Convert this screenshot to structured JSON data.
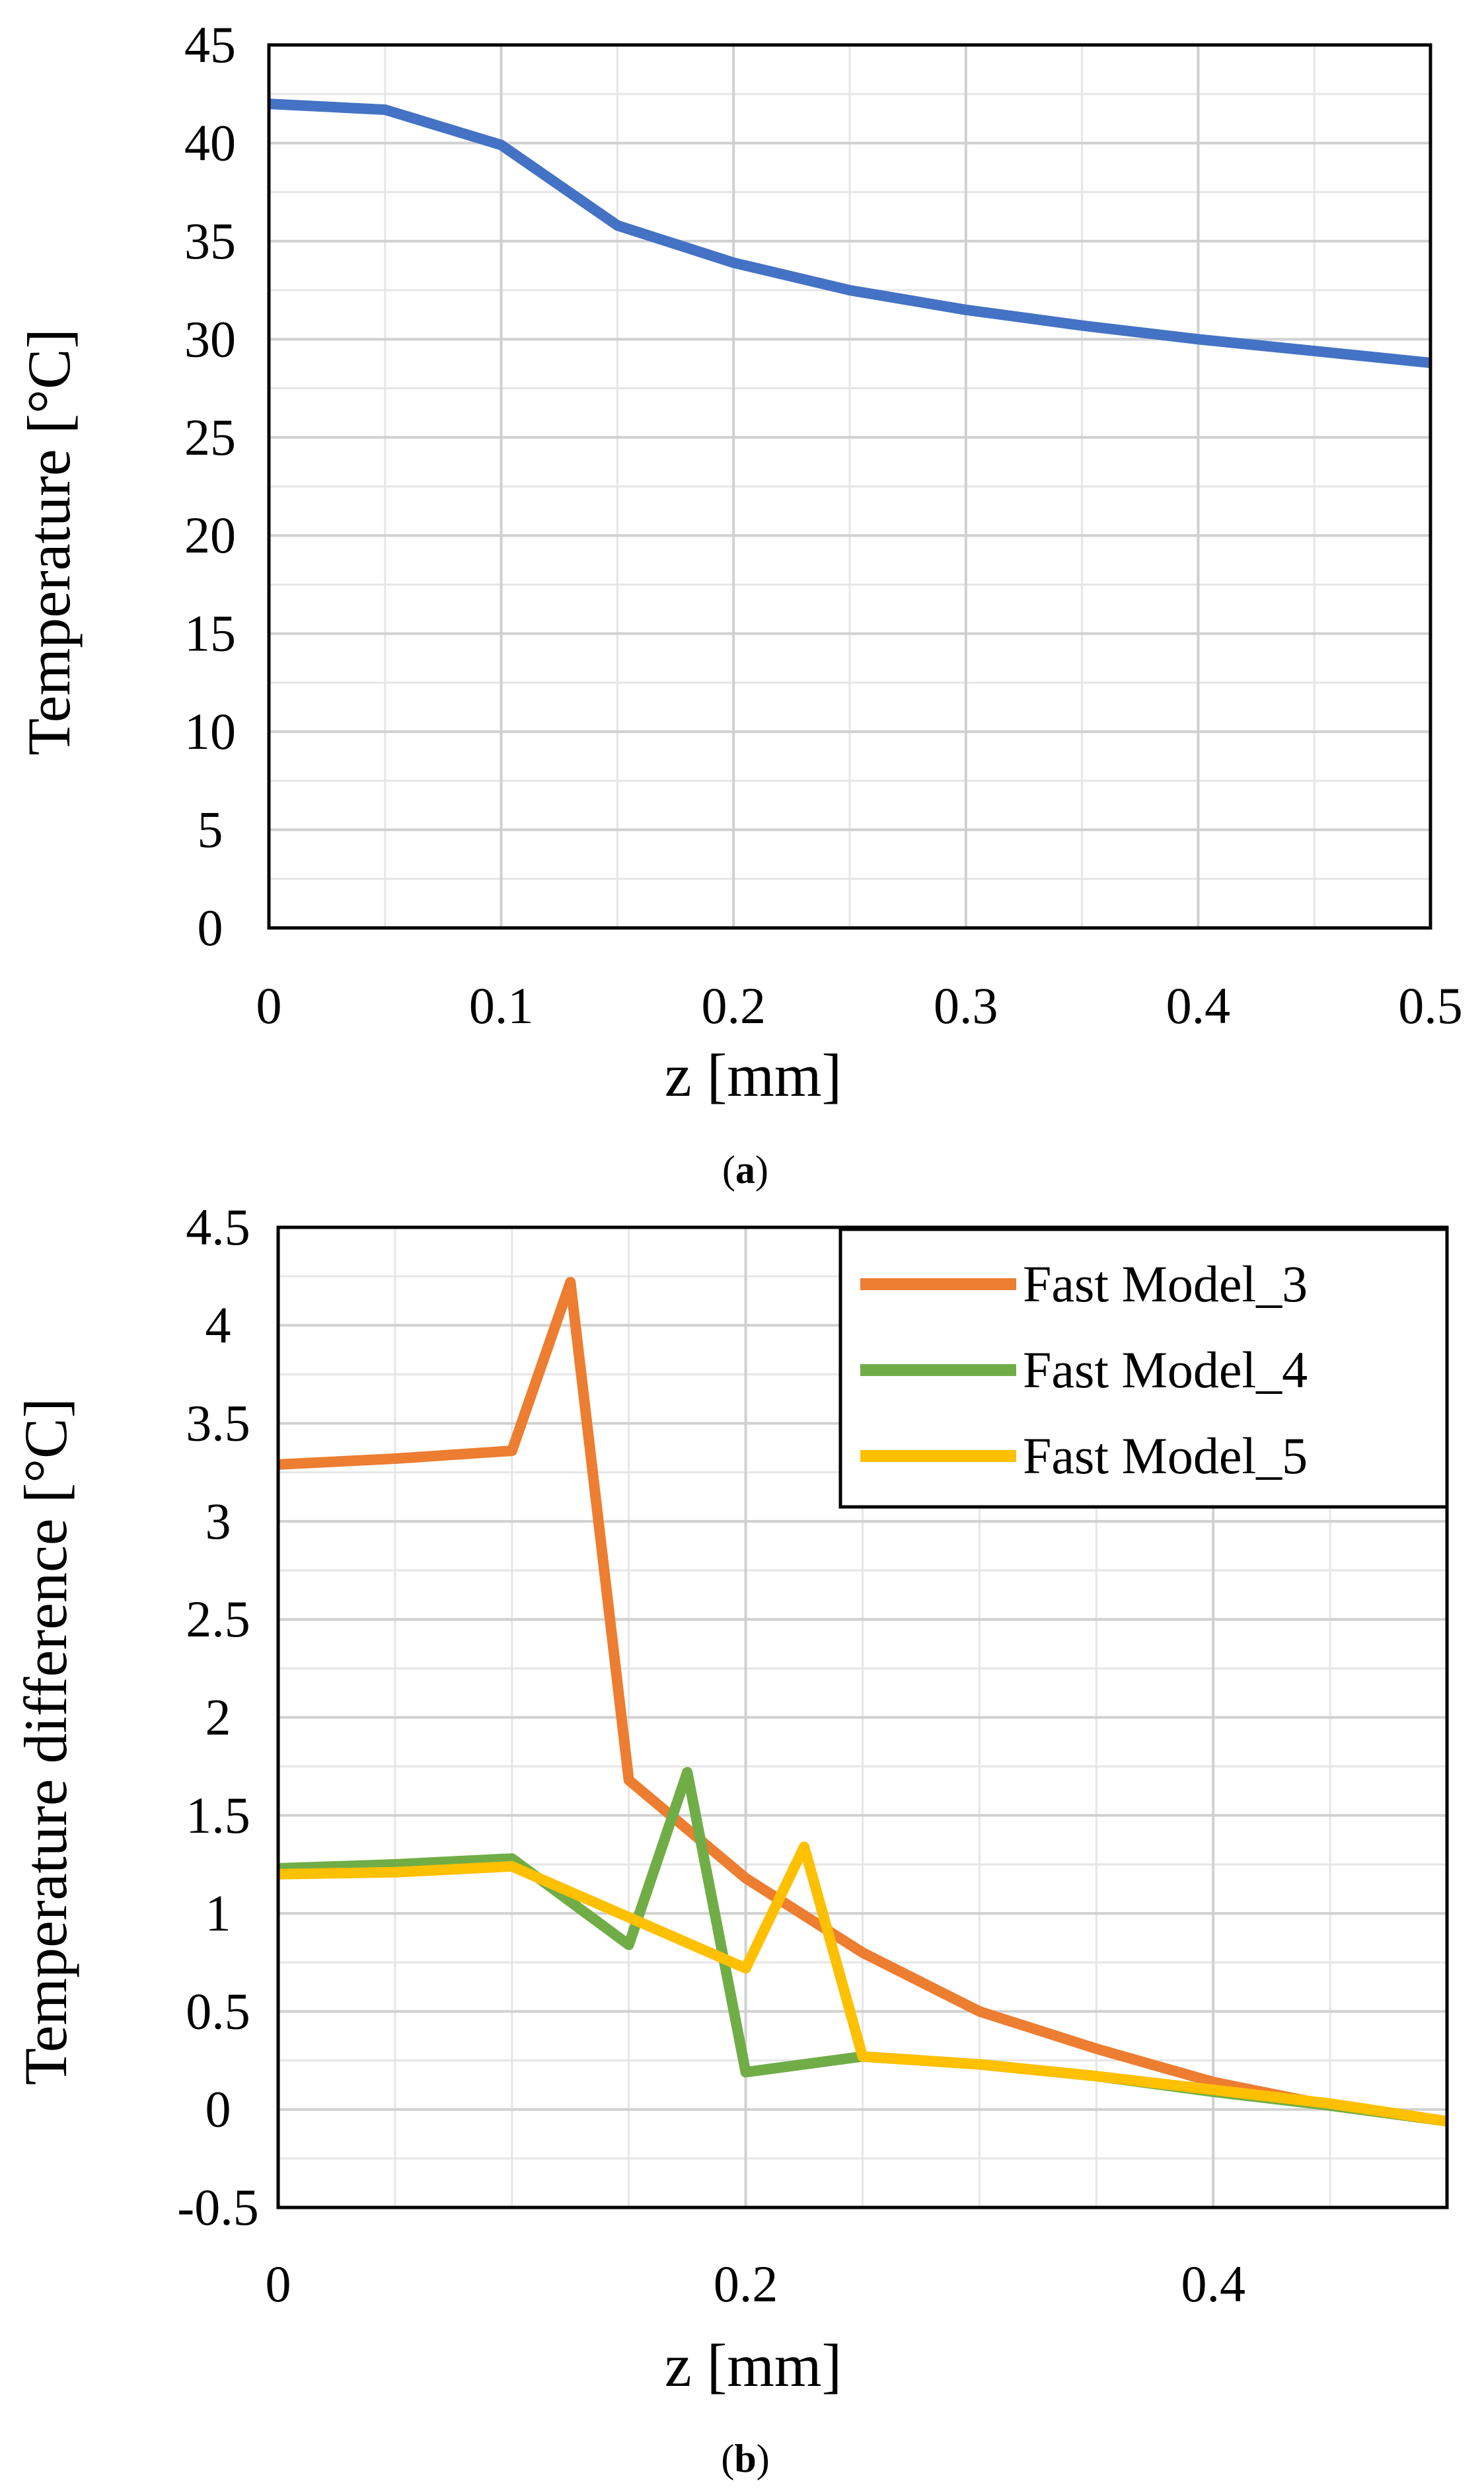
{
  "chart_data": [
    {
      "id": "a",
      "type": "line",
      "title": "",
      "xlabel": "z [mm]",
      "ylabel": "Temperature [°C]",
      "xlim": [
        0,
        0.5
      ],
      "ylim": [
        0,
        45
      ],
      "xticks": [
        0,
        0.1,
        0.2,
        0.3,
        0.4,
        0.5
      ],
      "xtick_labels": [
        "0",
        "0.1",
        "0.2",
        "0.3",
        "0.4",
        "0.5"
      ],
      "yticks": [
        0,
        5,
        10,
        15,
        20,
        25,
        30,
        35,
        40,
        45
      ],
      "ytick_labels": [
        "0",
        "5",
        "10",
        "15",
        "20",
        "25",
        "30",
        "35",
        "40",
        "45"
      ],
      "x_minor_step": 0.05,
      "y_minor_step": 2.5,
      "grid": true,
      "caption_bold": "a",
      "series": [
        {
          "name": "Temperature",
          "color": "#4472C4",
          "x": [
            0,
            0.05,
            0.1,
            0.15,
            0.2,
            0.25,
            0.3,
            0.35,
            0.4,
            0.45,
            0.5
          ],
          "y": [
            42.0,
            41.7,
            39.9,
            35.8,
            33.9,
            32.5,
            31.5,
            30.7,
            30.0,
            29.4,
            28.8
          ]
        }
      ]
    },
    {
      "id": "b",
      "type": "line",
      "title": "",
      "xlabel": "z [mm]",
      "ylabel": "Temperature difference [°C]",
      "xlim": [
        0,
        0.5
      ],
      "ylim": [
        -0.5,
        4.5
      ],
      "xticks": [
        0,
        0.2,
        0.4
      ],
      "xtick_labels": [
        "0",
        "0.2",
        "0.4"
      ],
      "yticks": [
        -0.5,
        0,
        0.5,
        1,
        1.5,
        2,
        2.5,
        3,
        3.5,
        4,
        4.5
      ],
      "ytick_labels": [
        "-0.5",
        "0",
        "0.5",
        "1",
        "1.5",
        "2",
        "2.5",
        "3",
        "3.5",
        "4",
        "4.5"
      ],
      "x_minor_step": 0.05,
      "y_minor_step": 0.25,
      "grid": true,
      "legend_position": "top-right",
      "caption_bold": "b",
      "series": [
        {
          "name": "Fast Model_3",
          "color": "#ED7D31",
          "x": [
            0,
            0.05,
            0.1,
            0.125,
            0.15,
            0.2,
            0.25,
            0.3,
            0.35,
            0.4,
            0.45,
            0.5
          ],
          "y": [
            3.29,
            3.32,
            3.36,
            4.22,
            1.68,
            1.18,
            0.8,
            0.5,
            0.31,
            0.14,
            0.02,
            -0.06
          ]
        },
        {
          "name": "Fast Model_4",
          "color": "#70AD47",
          "x": [
            0,
            0.05,
            0.1,
            0.15,
            0.175,
            0.2,
            0.25,
            0.3,
            0.35,
            0.4,
            0.45,
            0.5
          ],
          "y": [
            1.23,
            1.25,
            1.28,
            0.84,
            1.72,
            0.19,
            0.27,
            0.23,
            0.17,
            0.09,
            0.02,
            -0.06
          ]
        },
        {
          "name": "Fast Model_5",
          "color": "#FFC000",
          "x": [
            0,
            0.05,
            0.1,
            0.15,
            0.2,
            0.225,
            0.25,
            0.3,
            0.35,
            0.4,
            0.45,
            0.5
          ],
          "y": [
            1.2,
            1.21,
            1.24,
            0.98,
            0.72,
            1.34,
            0.27,
            0.23,
            0.17,
            0.1,
            0.03,
            -0.06
          ]
        }
      ]
    }
  ]
}
